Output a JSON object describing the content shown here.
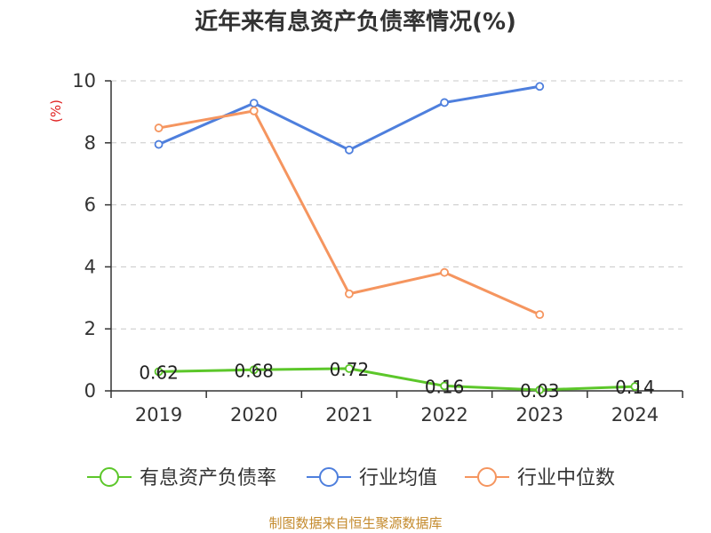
{
  "title": "近年来有息资产负债率情况(%)",
  "source": "制图数据来自恒生聚源数据库",
  "chart_data": {
    "type": "line",
    "ylabel": "(%)",
    "categories": [
      "2019",
      "2020",
      "2021",
      "2022",
      "2023",
      "2024"
    ],
    "ylim": [
      0,
      10
    ],
    "yticks": [
      0,
      2,
      4,
      6,
      8,
      10
    ],
    "grid": true,
    "legend_position": "bottom",
    "series": [
      {
        "name": "有息资产负债率",
        "color": "#5cc72a",
        "values": [
          0.62,
          0.68,
          0.72,
          0.16,
          0.03,
          0.14
        ],
        "labels": [
          "0.62",
          "0.68",
          "0.72",
          "0.16",
          "0.03",
          "0.14"
        ]
      },
      {
        "name": "行业均值",
        "color": "#4e7fdd",
        "values": [
          7.95,
          9.28,
          7.77,
          9.3,
          9.82,
          null
        ]
      },
      {
        "name": "行业中位数",
        "color": "#f5955f",
        "values": [
          8.48,
          9.03,
          3.13,
          3.82,
          2.46,
          null
        ]
      }
    ],
    "axis_color": "#333333",
    "grid_color": "#c8c8c8",
    "unit_color": "#e02020"
  }
}
